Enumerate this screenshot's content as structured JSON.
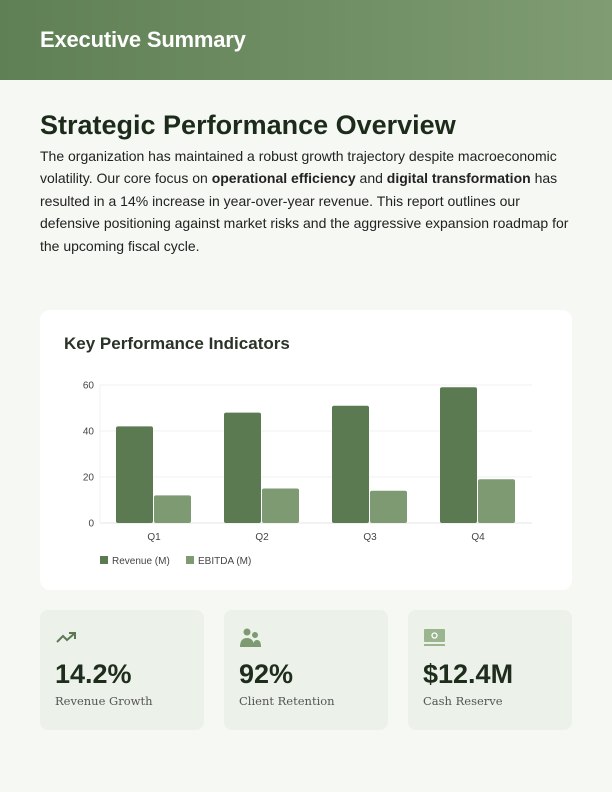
{
  "header": {
    "title": "Executive Summary"
  },
  "main": {
    "title": "Strategic Performance Overview",
    "intro": {
      "p1": "The organization has maintained a robust growth trajectory despite macroeconomic volatility. Our core focus on ",
      "b1": "operational efficiency",
      "p2": " and ",
      "b2": "digital transformation",
      "p3": " has resulted in a 14% increase in year-over-year revenue. This report outlines our defensive positioning against market risks and the aggressive expansion roadmap for the upcoming fiscal cycle."
    }
  },
  "kpi_card": {
    "title": "Key Performance Indicators"
  },
  "chart_data": {
    "type": "bar",
    "categories": [
      "Q1",
      "Q2",
      "Q3",
      "Q4"
    ],
    "series": [
      {
        "name": "Revenue (M)",
        "values": [
          42,
          48,
          51,
          59
        ],
        "color": "#5b7a52"
      },
      {
        "name": "EBITDA (M)",
        "values": [
          12,
          15,
          14,
          19
        ],
        "color": "#7d9a72"
      }
    ],
    "ylim": [
      0,
      60
    ],
    "yticks": [
      0,
      20,
      40,
      60
    ],
    "grid": true,
    "legend": "bottom-left"
  },
  "kpis": [
    {
      "icon": "trending-up-icon",
      "value": "14.2%",
      "label": "Revenue Growth"
    },
    {
      "icon": "users-icon",
      "value": "92%",
      "label": "Client Retention"
    },
    {
      "icon": "money-icon",
      "value": "$12.4M",
      "label": "Cash Reserve"
    }
  ]
}
